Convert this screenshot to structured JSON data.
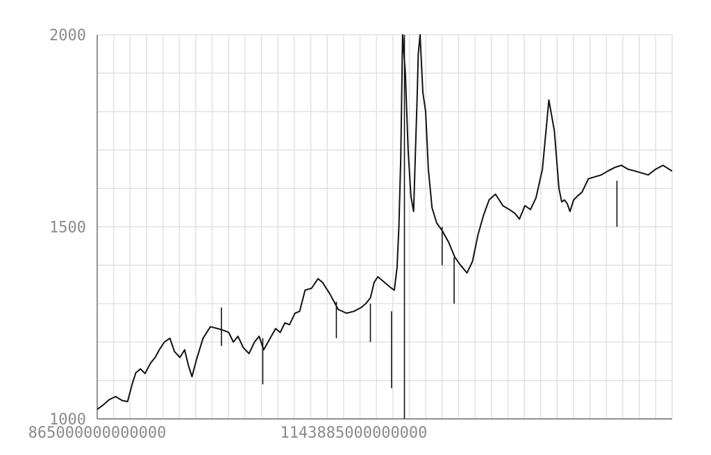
{
  "chart_data": {
    "type": "line",
    "title": "",
    "xlabel": "",
    "ylabel": "",
    "xlim": [
      865000000000000,
      1490000000000000
    ],
    "ylim": [
      1000,
      2000
    ],
    "x_tick_labels": [
      {
        "value": 865000000000000,
        "label": "865000000000000"
      },
      {
        "value": 1143885000000000,
        "label": "1143885000000000"
      }
    ],
    "y_tick_labels": [
      {
        "value": 1000,
        "label": "1000"
      },
      {
        "value": 1500,
        "label": "1500"
      },
      {
        "value": 2000,
        "label": "2000"
      }
    ],
    "grid": true,
    "series": [
      {
        "x": [
          865000000000000,
          871000000000000,
          878000000000000,
          885000000000000,
          892000000000000,
          898000000000000,
          903000000000000,
          907000000000000,
          912000000000000,
          917000000000000,
          923000000000000,
          928000000000000,
          933000000000000,
          938000000000000,
          944000000000000,
          949000000000000,
          955000000000000,
          960000000000000,
          964000000000000,
          968000000000000,
          973000000000000,
          980000000000000,
          988000000000000,
          996000000000000,
          1003000000000000,
          1008000000000000,
          1013000000000000,
          1018000000000000,
          1024000000000000,
          1030000000000000,
          1036000000000000,
          1041000000000000,
          1046000000000000,
          1053000000000000,
          1059000000000000,
          1064000000000000,
          1069000000000000,
          1074000000000000,
          1080000000000000,
          1085000000000000,
          1091000000000000,
          1098000000000000,
          1105000000000000,
          1110000000000000,
          1118000000000000,
          1127000000000000,
          1136000000000000,
          1144000000000000,
          1152000000000000,
          1157000000000000,
          1162000000000000,
          1166000000000000,
          1170000000000000,
          1175000000000000,
          1180000000000000,
          1185000000000000,
          1188000000000000,
          1191000000000000,
          1193000000000000,
          1195000000000000,
          1197000000000000,
          1200000000000000,
          1203000000000000,
          1206000000000000,
          1209000000000000,
          1211000000000000,
          1213000000000000,
          1214000000000000,
          1216000000000000,
          1219000000000000,
          1222000000000000,
          1225000000000000,
          1229000000000000,
          1234000000000000,
          1240000000000000,
          1247000000000000,
          1254000000000000,
          1260000000000000,
          1267000000000000,
          1273000000000000,
          1279000000000000,
          1285000000000000,
          1291000000000000,
          1298000000000000,
          1306000000000000,
          1313000000000000,
          1319000000000000,
          1324000000000000,
          1330000000000000,
          1336000000000000,
          1342000000000000,
          1349000000000000,
          1356000000000000,
          1362000000000000,
          1367000000000000,
          1370000000000000,
          1373000000000000,
          1376000000000000,
          1379000000000000,
          1383000000000000,
          1387000000000000,
          1392000000000000,
          1399000000000000,
          1406000000000000,
          1413000000000000,
          1420000000000000,
          1428000000000000,
          1435000000000000,
          1442000000000000,
          1450000000000000,
          1457000000000000,
          1464000000000000,
          1472000000000000,
          1480000000000000,
          1490000000000000
        ],
        "y": [
          1025,
          1035,
          1050,
          1058,
          1048,
          1045,
          1090,
          1120,
          1130,
          1118,
          1145,
          1160,
          1182,
          1200,
          1210,
          1175,
          1160,
          1180,
          1140,
          1110,
          1155,
          1210,
          1240,
          1235,
          1230,
          1225,
          1200,
          1215,
          1185,
          1170,
          1200,
          1215,
          1180,
          1210,
          1235,
          1225,
          1250,
          1245,
          1275,
          1280,
          1335,
          1340,
          1365,
          1355,
          1325,
          1285,
          1275,
          1280,
          1290,
          1300,
          1315,
          1355,
          1370,
          1360,
          1350,
          1340,
          1335,
          1395,
          1500,
          1680,
          2000,
          1900,
          1700,
          1580,
          1540,
          1700,
          1850,
          1950,
          2000,
          1850,
          1800,
          1650,
          1550,
          1510,
          1490,
          1460,
          1420,
          1400,
          1380,
          1410,
          1480,
          1530,
          1570,
          1585,
          1555,
          1545,
          1535,
          1520,
          1555,
          1545,
          1575,
          1650,
          1830,
          1750,
          1600,
          1565,
          1570,
          1560,
          1540,
          1570,
          1580,
          1590,
          1625,
          1630,
          1635,
          1645,
          1655,
          1660,
          1650,
          1645,
          1640,
          1635,
          1650,
          1660,
          1645
        ],
        "spikes": [
          {
            "x": 1000000000000000,
            "from": 1190,
            "to": 1290
          },
          {
            "x": 1045000000000000,
            "from": 1090,
            "to": 1210
          },
          {
            "x": 1125000000000000,
            "from": 1210,
            "to": 1305
          },
          {
            "x": 1162000000000000,
            "from": 1200,
            "to": 1300
          },
          {
            "x": 1185000000000000,
            "from": 1080,
            "to": 1280
          },
          {
            "x": 1199000000000000,
            "from": 1000,
            "to": 2000
          },
          {
            "x": 1240000000000000,
            "from": 1400,
            "to": 1500
          },
          {
            "x": 1253000000000000,
            "from": 1300,
            "to": 1420
          },
          {
            "x": 1430000000000000,
            "from": 1500,
            "to": 1620
          }
        ]
      }
    ]
  }
}
